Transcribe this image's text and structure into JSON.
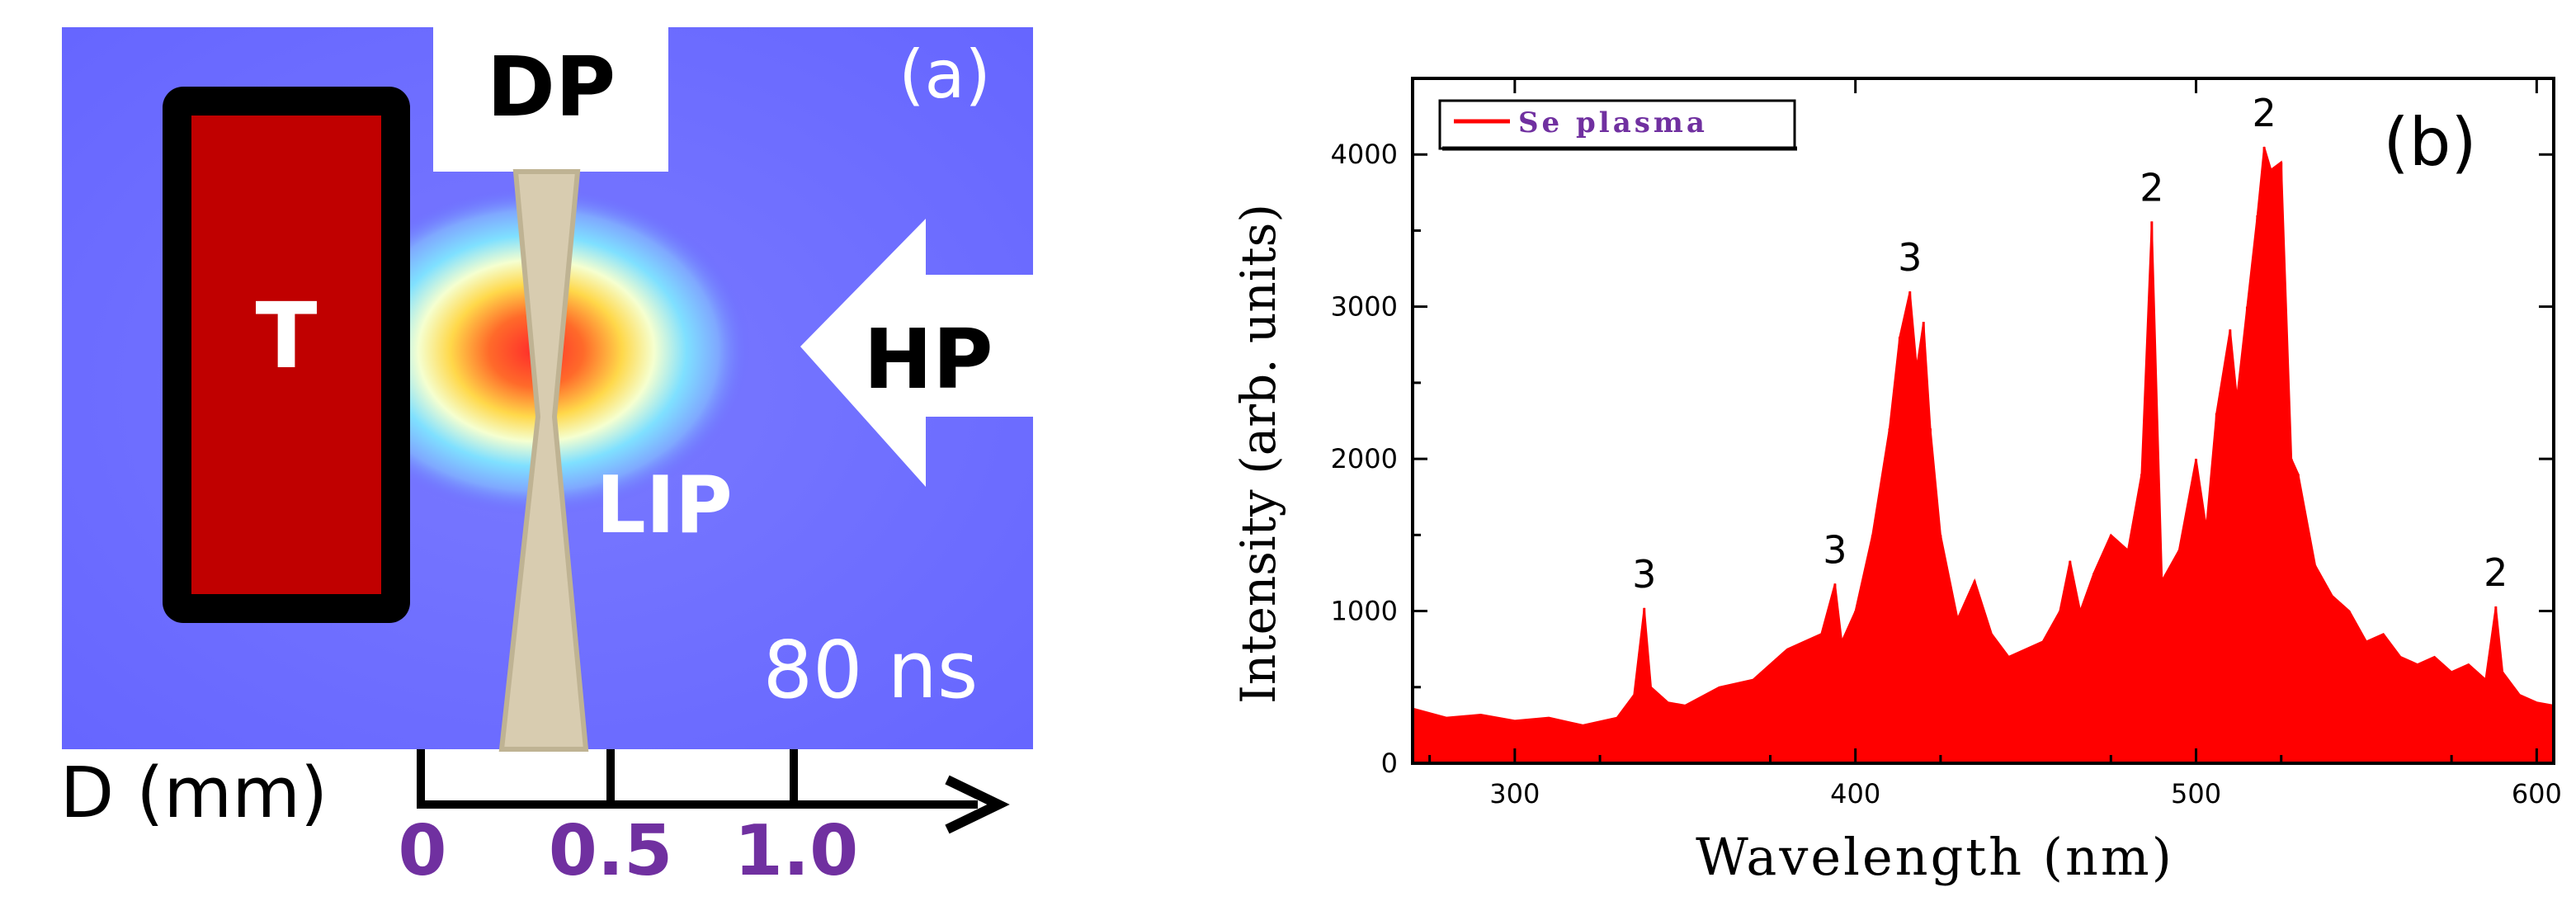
{
  "panel_a": {
    "panel_label": "(a)",
    "target_label": "T",
    "double_pulse_label": "DP",
    "heating_pulse_label": "HP",
    "plasma_label": "LIP",
    "time_label": "80 ns",
    "axis_label": "D (mm)",
    "ticks": [
      "0",
      "0.5",
      "1.0"
    ],
    "colors": {
      "background": "#6b6bff",
      "target_fill": "#c00000",
      "target_border": "#000000",
      "beam": "#d8ccb0",
      "tick_text": "#7030a0"
    }
  },
  "chart_data": {
    "type": "line",
    "panel_label": "(b)",
    "xlabel": "Wavelength (nm)",
    "ylabel": "Intensity (arb. units)",
    "xlim": [
      270,
      605
    ],
    "ylim": [
      0,
      4500
    ],
    "xticks": [
      300,
      400,
      500,
      600
    ],
    "yticks": [
      0,
      1000,
      2000,
      3000,
      4000
    ],
    "legend": {
      "label": "Se plasma",
      "placement": "top-left"
    },
    "series": [
      {
        "name": "Se plasma",
        "color": "#ff0000",
        "x": [
          270,
          280,
          290,
          300,
          310,
          320,
          330,
          335,
          338,
          340,
          345,
          350,
          360,
          370,
          380,
          385,
          390,
          394,
          396,
          400,
          405,
          410,
          413,
          416,
          418,
          420,
          422,
          425,
          430,
          435,
          440,
          445,
          450,
          455,
          460,
          463,
          466,
          470,
          475,
          480,
          484,
          487,
          490,
          495,
          500,
          503,
          506,
          510,
          512,
          515,
          518,
          520,
          522,
          525,
          528,
          530,
          535,
          540,
          545,
          550,
          555,
          560,
          565,
          570,
          575,
          580,
          585,
          588,
          590,
          595,
          600,
          605
        ],
        "y": [
          360,
          300,
          320,
          280,
          300,
          250,
          300,
          450,
          1020,
          500,
          400,
          380,
          500,
          550,
          750,
          800,
          850,
          1180,
          800,
          1000,
          1500,
          2200,
          2800,
          3100,
          2600,
          2900,
          2200,
          1500,
          950,
          1200,
          850,
          700,
          750,
          800,
          1000,
          1330,
          1000,
          1250,
          1500,
          1400,
          1900,
          3560,
          1200,
          1400,
          2000,
          1550,
          2300,
          2850,
          2400,
          3000,
          3600,
          4050,
          3900,
          3950,
          2000,
          1900,
          1300,
          1100,
          1000,
          800,
          850,
          700,
          650,
          700,
          600,
          650,
          550,
          1030,
          600,
          450,
          400,
          380
        ]
      }
    ],
    "annotations": [
      {
        "text": "3",
        "x": 338,
        "y": 1020
      },
      {
        "text": "3",
        "x": 394,
        "y": 1180
      },
      {
        "text": "3",
        "x": 416,
        "y": 3100
      },
      {
        "text": "2",
        "x": 487,
        "y": 3560
      },
      {
        "text": "2",
        "x": 520,
        "y": 4050
      },
      {
        "text": "2",
        "x": 588,
        "y": 1030
      }
    ]
  }
}
